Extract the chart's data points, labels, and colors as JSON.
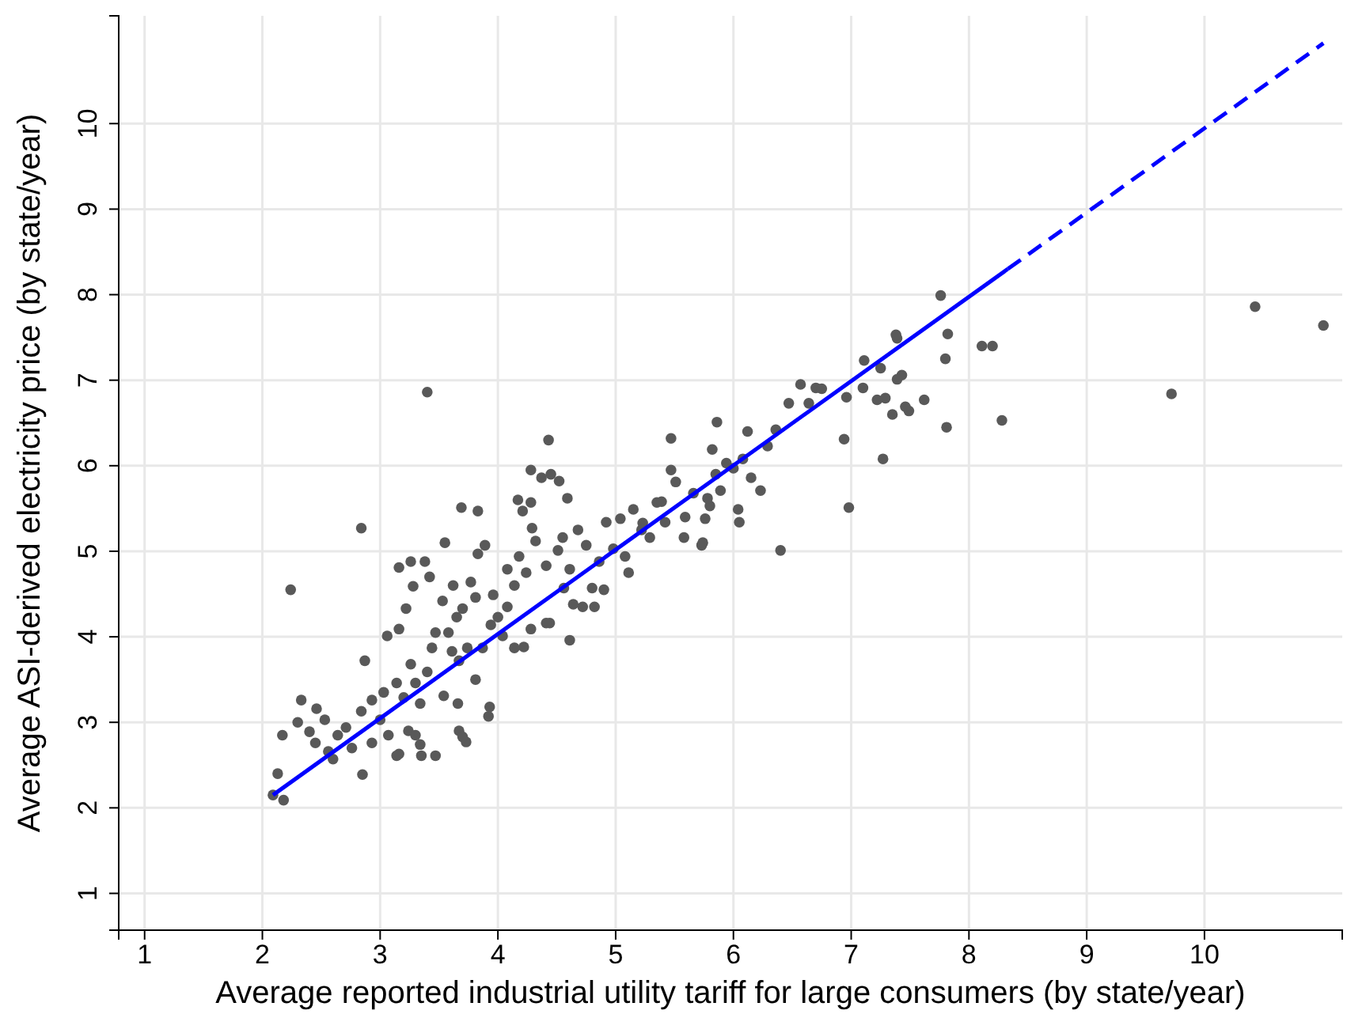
{
  "chart_data": {
    "type": "scatter",
    "xlabel": "Average reported industrial utility tariff for large consumers (by state/year)",
    "ylabel": "Average ASI-derived electricity price (by state/year)",
    "xlim": [
      0.78,
      11.17
    ],
    "ylim": [
      0.57,
      11.26
    ],
    "xticks": [
      1,
      2,
      3,
      4,
      5,
      6,
      7,
      8,
      9,
      10
    ],
    "yticks": [
      1,
      2,
      3,
      4,
      5,
      6,
      7,
      8,
      9,
      10
    ],
    "grid": true,
    "series": [
      {
        "color": "#595959",
        "marker": "circle",
        "x": [
          2.09,
          2.18,
          2.13,
          2.24,
          2.17,
          2.33,
          2.3,
          2.4,
          2.46,
          2.53,
          2.45,
          2.56,
          2.64,
          2.6,
          2.71,
          2.76,
          2.84,
          2.87,
          2.85,
          2.93,
          3.0,
          3.03,
          3.07,
          3.14,
          3.2,
          3.26,
          3.3,
          2.84,
          3.06,
          3.14,
          3.24,
          3.34,
          3.4,
          3.44,
          3.47,
          3.54,
          3.58,
          3.65,
          3.67,
          3.74,
          3.81,
          3.87,
          3.94,
          3.16,
          3.22,
          3.28,
          3.38,
          3.42,
          3.53,
          3.62,
          3.7,
          3.77,
          3.83,
          3.89,
          3.96,
          4.0,
          4.08,
          4.14,
          4.18,
          4.24,
          4.32,
          4.41,
          4.51,
          4.56,
          4.61,
          4.68,
          4.75,
          4.8,
          4.86,
          4.92,
          4.98,
          5.04,
          5.08,
          5.15,
          5.22,
          5.29,
          5.35,
          5.42,
          5.51,
          5.59,
          5.66,
          5.73,
          5.8,
          5.89,
          5.94,
          6.0,
          6.04,
          6.12,
          6.15,
          6.23,
          6.29,
          6.36,
          6.47,
          6.57,
          6.64,
          6.7,
          6.75,
          6.94,
          6.96,
          6.98,
          7.11,
          7.1,
          7.25,
          7.22,
          7.29,
          7.35,
          7.39,
          7.43,
          7.49,
          7.38,
          7.81,
          7.8,
          7.76,
          7.82,
          8.11,
          8.2,
          8.28,
          9.72,
          10.43,
          11.01,
          3.4,
          3.69,
          3.83,
          4.17,
          3.55,
          3.16,
          3.26,
          3.67,
          3.73,
          3.92,
          3.93,
          3.34,
          3.35,
          3.16,
          4.43,
          4.28,
          4.52,
          5.47,
          5.86,
          5.11,
          4.44,
          4.22,
          7.27,
          7.62,
          7.46,
          7.39,
          5.74,
          3.66,
          3.7,
          3.3,
          4.29,
          4.21,
          4.55,
          4.45,
          4.37,
          4.59,
          5.23,
          5.39,
          5.47,
          5.58,
          5.76,
          5.78,
          5.85,
          6.05,
          6.08,
          6.4,
          5.82,
          4.08,
          4.04,
          4.14,
          4.28,
          4.41,
          4.61,
          4.64,
          4.72,
          4.82,
          4.9,
          4.28,
          3.81,
          3.61,
          3.47,
          2.93
        ],
        "values": [
          2.15,
          2.09,
          2.4,
          4.55,
          2.85,
          3.26,
          3.0,
          2.89,
          3.16,
          3.03,
          2.76,
          2.66,
          2.85,
          2.57,
          2.94,
          2.7,
          3.13,
          3.72,
          2.39,
          2.76,
          3.03,
          3.35,
          2.85,
          2.61,
          3.29,
          3.68,
          3.46,
          5.27,
          4.01,
          3.46,
          2.9,
          3.22,
          3.59,
          3.87,
          2.61,
          3.31,
          4.05,
          4.23,
          3.72,
          3.87,
          3.5,
          3.87,
          4.14,
          4.09,
          4.33,
          4.59,
          4.88,
          4.7,
          4.42,
          4.6,
          4.33,
          4.64,
          4.97,
          5.07,
          4.49,
          4.23,
          4.79,
          4.6,
          4.94,
          4.75,
          5.12,
          4.83,
          5.01,
          4.57,
          4.79,
          5.25,
          5.07,
          4.57,
          4.88,
          5.34,
          5.03,
          5.38,
          4.94,
          5.49,
          5.25,
          5.16,
          5.57,
          5.34,
          5.81,
          5.4,
          5.68,
          5.07,
          5.53,
          5.71,
          6.03,
          5.97,
          5.49,
          6.4,
          5.86,
          5.71,
          6.23,
          6.42,
          6.73,
          6.95,
          6.73,
          6.91,
          6.9,
          6.31,
          6.8,
          5.51,
          7.23,
          6.91,
          7.14,
          6.77,
          6.79,
          6.6,
          7.49,
          7.06,
          6.64,
          7.53,
          6.45,
          7.25,
          7.99,
          7.54,
          7.4,
          7.4,
          6.53,
          6.84,
          7.86,
          7.64,
          6.86,
          5.51,
          5.47,
          5.6,
          5.1,
          4.81,
          4.88,
          2.9,
          2.77,
          3.07,
          3.18,
          2.74,
          2.61,
          2.63,
          6.3,
          5.95,
          5.82,
          6.32,
          6.51,
          4.75,
          4.16,
          3.88,
          6.08,
          6.77,
          6.69,
          7.01,
          5.1,
          3.22,
          2.83,
          2.85,
          5.27,
          5.47,
          5.16,
          5.9,
          5.86,
          5.62,
          5.33,
          5.58,
          5.95,
          5.16,
          5.38,
          5.62,
          5.9,
          5.34,
          6.08,
          5.01,
          6.19,
          4.35,
          4.01,
          3.87,
          4.09,
          4.16,
          3.96,
          4.38,
          4.35,
          4.35,
          4.55,
          5.57,
          4.46,
          3.83,
          4.05,
          3.26
        ]
      },
      {
        "type": "line",
        "color": "#0000ff",
        "line_style": "solid",
        "marker": "none",
        "x": [
          2.09,
          8.33
        ],
        "values": [
          2.15,
          8.3
        ]
      },
      {
        "type": "line",
        "color": "#0000ff",
        "line_style": "dashed",
        "marker": "none",
        "x": [
          8.33,
          11.01
        ],
        "values": [
          8.3,
          10.94
        ]
      }
    ]
  }
}
